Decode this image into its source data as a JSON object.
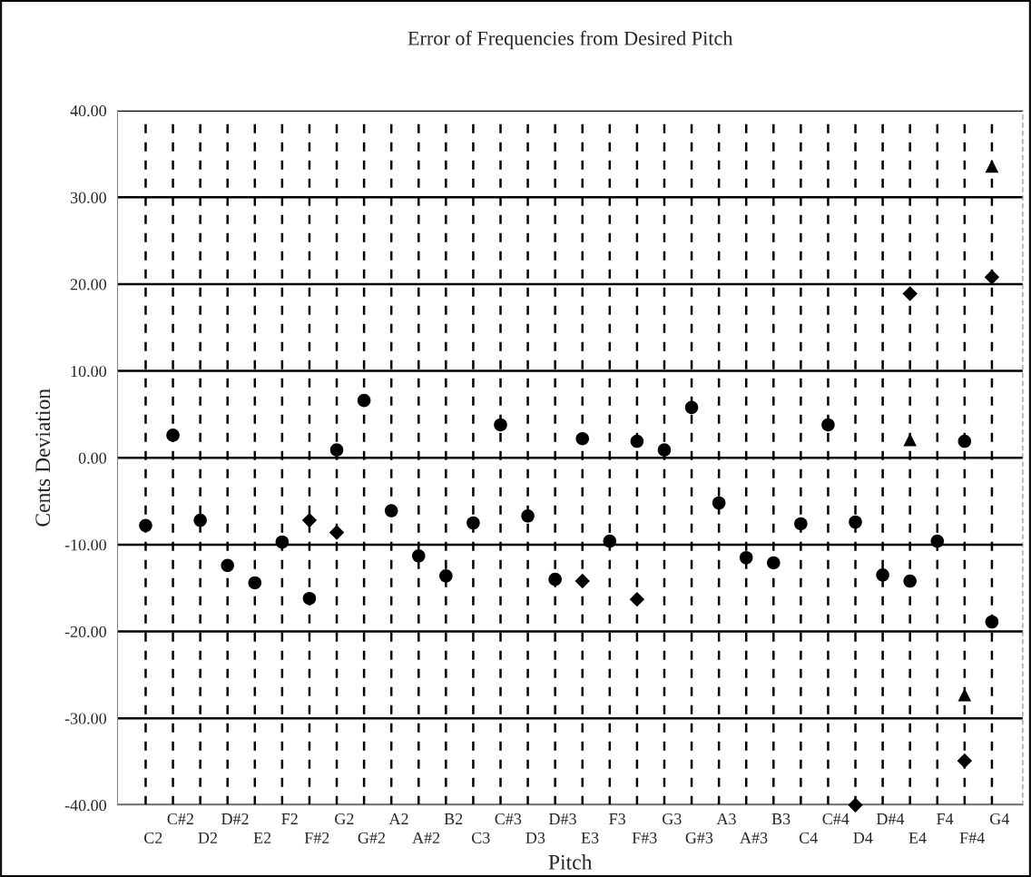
{
  "chart_data": {
    "type": "scatter",
    "title": "Error of Frequencies from Desired Pitch",
    "xlabel": "Pitch",
    "ylabel": "Cents Deviation",
    "categories": [
      "C2",
      "C#2",
      "D2",
      "D#2",
      "E2",
      "F2",
      "F#2",
      "G2",
      "G#2",
      "A2",
      "A#2",
      "B2",
      "C3",
      "C#3",
      "D3",
      "D#3",
      "E3",
      "F3",
      "F#3",
      "G3",
      "G#3",
      "A3",
      "A#3",
      "B3",
      "C4",
      "C#4",
      "D4",
      "D#4",
      "E4",
      "F4",
      "F#4",
      "G4"
    ],
    "series": [
      {
        "color": "#000000",
        "marker": "circle",
        "values": [
          -7.8,
          2.6,
          -7.2,
          -12.4,
          -14.4,
          -9.7,
          -16.2,
          0.9,
          6.6,
          -6.1,
          -11.3,
          -13.6,
          -7.5,
          3.8,
          -6.7,
          -14.0,
          2.2,
          -9.6,
          1.9,
          0.9,
          5.8,
          -5.2,
          -11.5,
          -12.1,
          -7.6,
          3.8,
          -7.4,
          -13.5,
          -14.2,
          -9.6,
          1.9,
          -18.9
        ]
      },
      {
        "color": "#000000",
        "marker": "diamond",
        "values": [
          null,
          null,
          null,
          null,
          null,
          null,
          -7.2,
          -8.6,
          null,
          null,
          null,
          null,
          null,
          null,
          null,
          null,
          -14.2,
          null,
          -16.3,
          null,
          null,
          null,
          null,
          null,
          null,
          null,
          -40.0,
          null,
          18.9,
          null,
          -34.9,
          20.8
        ]
      },
      {
        "color": "#000000",
        "marker": "triangle",
        "values": [
          null,
          null,
          null,
          null,
          null,
          null,
          null,
          null,
          null,
          null,
          null,
          null,
          null,
          null,
          null,
          null,
          null,
          null,
          null,
          null,
          null,
          null,
          null,
          null,
          null,
          null,
          null,
          null,
          2.1,
          null,
          -27.3,
          33.6
        ]
      }
    ],
    "ylim": [
      -40,
      40
    ],
    "yticks": [
      {
        "value": -40,
        "label": "-40.00"
      },
      {
        "value": -30,
        "label": "-30.00"
      },
      {
        "value": -20,
        "label": "-20.00"
      },
      {
        "value": -10,
        "label": "-10.00"
      },
      {
        "value": 0,
        "label": "0.00"
      },
      {
        "value": 10,
        "label": "10.00"
      },
      {
        "value": 20,
        "label": "20.00"
      },
      {
        "value": 30,
        "label": "30.00"
      },
      {
        "value": 40,
        "label": "40.00"
      }
    ],
    "grid": true
  }
}
